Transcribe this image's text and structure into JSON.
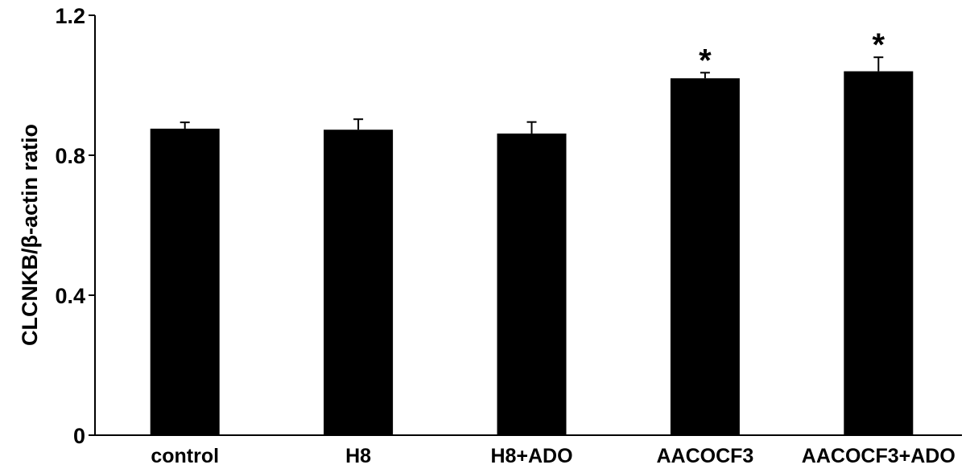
{
  "chart_data": {
    "type": "bar",
    "title": "",
    "xlabel": "",
    "ylabel": "CLCNKB/β-actin ratio",
    "ylim": [
      0,
      1.2
    ],
    "yticks": [
      0,
      0.4,
      0.8,
      1.2
    ],
    "ytick_labels": [
      "0",
      "0.4",
      "0.8",
      "1.2"
    ],
    "categories": [
      "control",
      "H8",
      "H8+ADO",
      "AACOCF3",
      "AACOCF3+ADO"
    ],
    "values": [
      0.876,
      0.873,
      0.862,
      1.02,
      1.04
    ],
    "errors": [
      0.018,
      0.03,
      0.033,
      0.016,
      0.04
    ],
    "significance": [
      "",
      "",
      "",
      "*",
      "*"
    ],
    "grid": false,
    "bar_color": "#000000"
  }
}
